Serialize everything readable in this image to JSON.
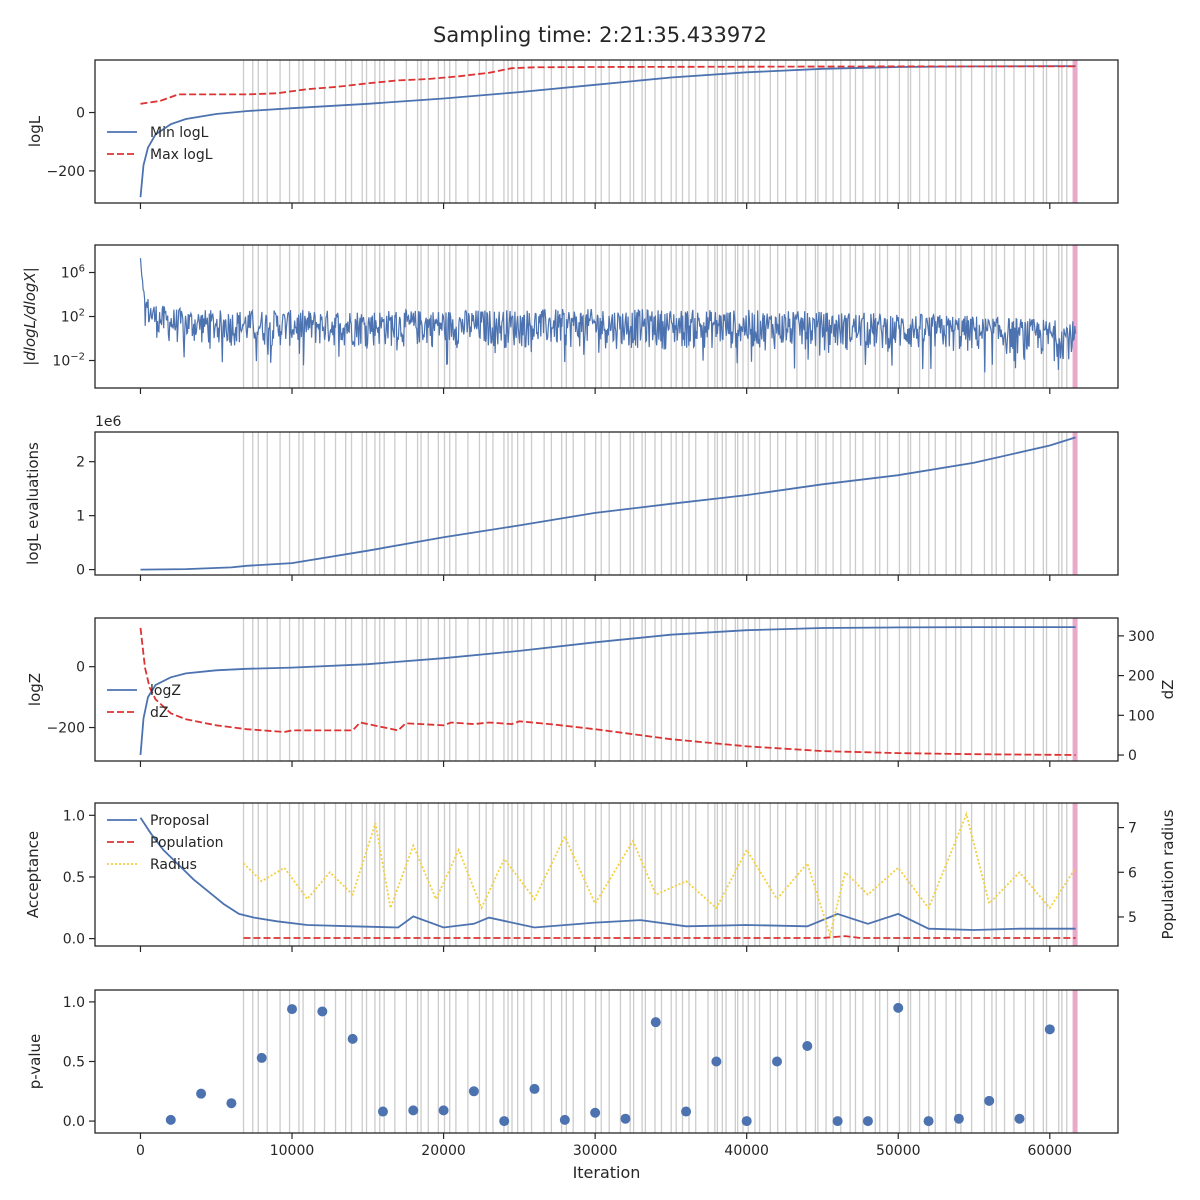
{
  "suptitle": "Sampling time: 2:21:35.433972",
  "colors": {
    "blue": "#4c72b0",
    "red": "#dd3333",
    "yellow": "#f4d03f",
    "grid_lines": "#cccccc",
    "final_band": "#e6a0c4"
  },
  "shared_x": {
    "xlabel": "Iteration",
    "xlim": [
      -3000,
      64500
    ],
    "ticks": [
      0,
      10000,
      20000,
      30000,
      40000,
      50000,
      60000
    ],
    "tick_labels": [
      "0",
      "10000",
      "20000",
      "30000",
      "40000",
      "50000",
      "60000"
    ],
    "end_iteration": 61700
  },
  "chart_data": [
    {
      "type": "line",
      "ylabel": "logL",
      "ylim": [
        -310,
        180
      ],
      "yticks": [
        -200,
        0
      ],
      "ytick_labels": [
        "−200",
        "0"
      ],
      "legend": [
        "Min logL",
        "Max logL"
      ],
      "legend_loc": "lower-left",
      "series": [
        {
          "name": "Min logL",
          "style": "solid",
          "color": "blue",
          "x": [
            0,
            200,
            500,
            1000,
            2000,
            3000,
            5000,
            7000,
            10000,
            15000,
            20000,
            25000,
            30000,
            35000,
            40000,
            45000,
            50000,
            55000,
            60000,
            61700
          ],
          "y": [
            -290,
            -180,
            -120,
            -75,
            -40,
            -22,
            -5,
            5,
            15,
            30,
            48,
            70,
            95,
            120,
            138,
            150,
            156,
            158,
            159,
            159
          ]
        },
        {
          "name": "Max logL",
          "style": "dashed",
          "color": "red",
          "x": [
            0,
            1300,
            2500,
            4000,
            7000,
            9000,
            11000,
            13000,
            15000,
            17000,
            19000,
            21000,
            23000,
            24500,
            26000,
            30000,
            40000,
            50000,
            61700
          ],
          "y": [
            30,
            40,
            62,
            62,
            62,
            66,
            80,
            88,
            100,
            110,
            115,
            124,
            136,
            152,
            155,
            156,
            157,
            158,
            158
          ]
        }
      ]
    },
    {
      "type": "line",
      "ylabel": "|dlogL/dlogX|",
      "scale": "log",
      "ylim_log10": [
        -4.5,
        8.5
      ],
      "yticks": [
        -2,
        2,
        6
      ],
      "ytick_labels": [
        "10⁻²",
        "10²",
        "10⁶"
      ],
      "series": [
        {
          "name": "",
          "style": "noisy-band",
          "color": "blue",
          "x": [
            0,
            100,
            300,
            600,
            1000,
            2000,
            5000,
            10000,
            20000,
            30000,
            40000,
            50000,
            55000,
            61700
          ],
          "y_upper_log10": [
            7.3,
            5.5,
            4.2,
            3.5,
            3.2,
            2.8,
            2.6,
            2.6,
            2.6,
            2.7,
            2.6,
            2.3,
            2.1,
            1.6
          ],
          "y_lower_log10": [
            3.5,
            2.8,
            1.6,
            0.6,
            0.0,
            -0.6,
            -0.8,
            -0.9,
            -0.9,
            -1.0,
            -1.1,
            -1.3,
            -1.5,
            -2.0
          ]
        }
      ]
    },
    {
      "type": "line",
      "ylabel": "logL evaluations",
      "offset_text": "1e6",
      "ylim": [
        -0.1,
        2.55
      ],
      "yticks": [
        0,
        1,
        2
      ],
      "ytick_labels": [
        "0",
        "1",
        "2"
      ],
      "series": [
        {
          "name": "",
          "style": "solid",
          "color": "blue",
          "x": [
            0,
            3000,
            6000,
            7000,
            10000,
            15000,
            20000,
            25000,
            30000,
            35000,
            40000,
            45000,
            50000,
            55000,
            60000,
            61700
          ],
          "y": [
            0,
            0.01,
            0.04,
            0.07,
            0.12,
            0.35,
            0.6,
            0.82,
            1.05,
            1.22,
            1.38,
            1.58,
            1.75,
            1.98,
            2.3,
            2.45
          ]
        }
      ]
    },
    {
      "type": "line",
      "ylabel": "logZ",
      "ylabel_right": "dZ",
      "ylim": [
        -310,
        160
      ],
      "yticks": [
        -200,
        0
      ],
      "ytick_labels": [
        "−200",
        "0"
      ],
      "ylim_right": [
        -15,
        345
      ],
      "yticks_right": [
        0,
        100,
        200,
        300
      ],
      "ytick_labels_right": [
        "0",
        "100",
        "200",
        "300"
      ],
      "legend": [
        "logZ",
        "dZ"
      ],
      "legend_loc": "lower-left",
      "series": [
        {
          "name": "logZ",
          "style": "solid",
          "color": "blue",
          "axis": "left",
          "x": [
            0,
            200,
            500,
            1000,
            2000,
            3000,
            5000,
            7000,
            10000,
            15000,
            20000,
            25000,
            30000,
            35000,
            40000,
            45000,
            50000,
            55000,
            61700
          ],
          "y": [
            -290,
            -170,
            -100,
            -60,
            -35,
            -22,
            -12,
            -7,
            -3,
            8,
            28,
            52,
            80,
            105,
            120,
            127,
            129,
            130,
            130
          ]
        },
        {
          "name": "dZ",
          "style": "dashed",
          "color": "red",
          "axis": "right",
          "x": [
            0,
            300,
            600,
            1000,
            2000,
            3000,
            5000,
            7000,
            9500,
            10000,
            11000,
            14000,
            14500,
            17000,
            17500,
            20000,
            20500,
            22000,
            23000,
            24500,
            25000,
            27000,
            30000,
            35000,
            40000,
            45000,
            50000,
            55000,
            61700
          ],
          "y": [
            320,
            220,
            170,
            140,
            105,
            90,
            75,
            65,
            58,
            62,
            62,
            62,
            82,
            62,
            80,
            75,
            82,
            78,
            82,
            78,
            85,
            78,
            65,
            40,
            22,
            10,
            5,
            2,
            0
          ]
        }
      ]
    },
    {
      "type": "line",
      "ylabel": "Acceptance",
      "ylabel_right": "Population radius",
      "ylim": [
        -0.06,
        1.1
      ],
      "yticks": [
        0.0,
        0.5,
        1.0
      ],
      "ytick_labels": [
        "0.0",
        "0.5",
        "1.0"
      ],
      "ylim_right": [
        4.35,
        7.55
      ],
      "yticks_right": [
        5,
        6,
        7
      ],
      "ytick_labels_right": [
        "5",
        "6",
        "7"
      ],
      "legend": [
        "Proposal",
        "Population",
        "Radius"
      ],
      "legend_loc": "upper-left",
      "series": [
        {
          "name": "Proposal",
          "style": "solid",
          "color": "blue",
          "axis": "left",
          "x": [
            0,
            700,
            1500,
            2500,
            3500,
            4500,
            5500,
            6500,
            7500,
            9000,
            11000,
            14000,
            17000,
            18000,
            20000,
            22000,
            23000,
            26000,
            30000,
            33000,
            36000,
            40000,
            44000,
            46000,
            48000,
            50000,
            52000,
            55000,
            58000,
            61700
          ],
          "y": [
            0.98,
            0.85,
            0.72,
            0.6,
            0.48,
            0.38,
            0.28,
            0.2,
            0.17,
            0.14,
            0.11,
            0.1,
            0.09,
            0.18,
            0.09,
            0.12,
            0.17,
            0.09,
            0.13,
            0.15,
            0.1,
            0.11,
            0.1,
            0.2,
            0.12,
            0.2,
            0.08,
            0.07,
            0.08,
            0.08
          ]
        },
        {
          "name": "Population",
          "style": "dashed",
          "color": "red",
          "axis": "left",
          "x": [
            6800,
            20000,
            40000,
            45000,
            46500,
            47500,
            50000,
            61700
          ],
          "y": [
            0.005,
            0.005,
            0.005,
            0.005,
            0.02,
            0.005,
            0.005,
            0.005
          ]
        },
        {
          "name": "Radius",
          "style": "dotted",
          "color": "yellow",
          "axis": "right",
          "x": [
            6800,
            8000,
            9500,
            11000,
            12500,
            14000,
            15500,
            16500,
            18000,
            19500,
            21000,
            22500,
            24000,
            26000,
            28000,
            30000,
            32500,
            34000,
            36000,
            38000,
            40000,
            42000,
            44000,
            45500,
            46500,
            48000,
            50000,
            52000,
            54500,
            56000,
            58000,
            60000,
            61700
          ],
          "y": [
            6.2,
            5.8,
            6.1,
            5.4,
            6.0,
            5.5,
            7.1,
            5.2,
            6.6,
            5.4,
            6.5,
            5.2,
            6.3,
            5.4,
            6.8,
            5.3,
            6.7,
            5.5,
            5.8,
            5.2,
            6.5,
            5.4,
            6.2,
            4.6,
            6.0,
            5.5,
            6.1,
            5.2,
            7.3,
            5.3,
            6.0,
            5.2,
            6.1
          ]
        }
      ]
    },
    {
      "type": "scatter",
      "ylabel": "p-value",
      "xlabel": "Iteration",
      "ylim": [
        -0.1,
        1.1
      ],
      "yticks": [
        0.0,
        0.5,
        1.0
      ],
      "ytick_labels": [
        "0.0",
        "0.5",
        "1.0"
      ],
      "series": [
        {
          "name": "",
          "color": "blue",
          "x": [
            2000,
            4000,
            6000,
            8000,
            10000,
            12000,
            14000,
            16000,
            18000,
            20000,
            22000,
            24000,
            26000,
            28000,
            30000,
            32000,
            34000,
            36000,
            38000,
            40000,
            42000,
            44000,
            46000,
            48000,
            50000,
            52000,
            54000,
            56000,
            58000,
            60000
          ],
          "y": [
            0.01,
            0.23,
            0.15,
            0.53,
            0.94,
            0.92,
            0.69,
            0.08,
            0.09,
            0.09,
            0.25,
            0.0,
            0.27,
            0.01,
            0.07,
            0.02,
            0.83,
            0.08,
            0.5,
            0.0,
            0.5,
            0.63,
            0.0,
            0.0,
            0.95,
            0.0,
            0.02,
            0.17,
            0.02,
            0.77
          ]
        }
      ]
    }
  ]
}
